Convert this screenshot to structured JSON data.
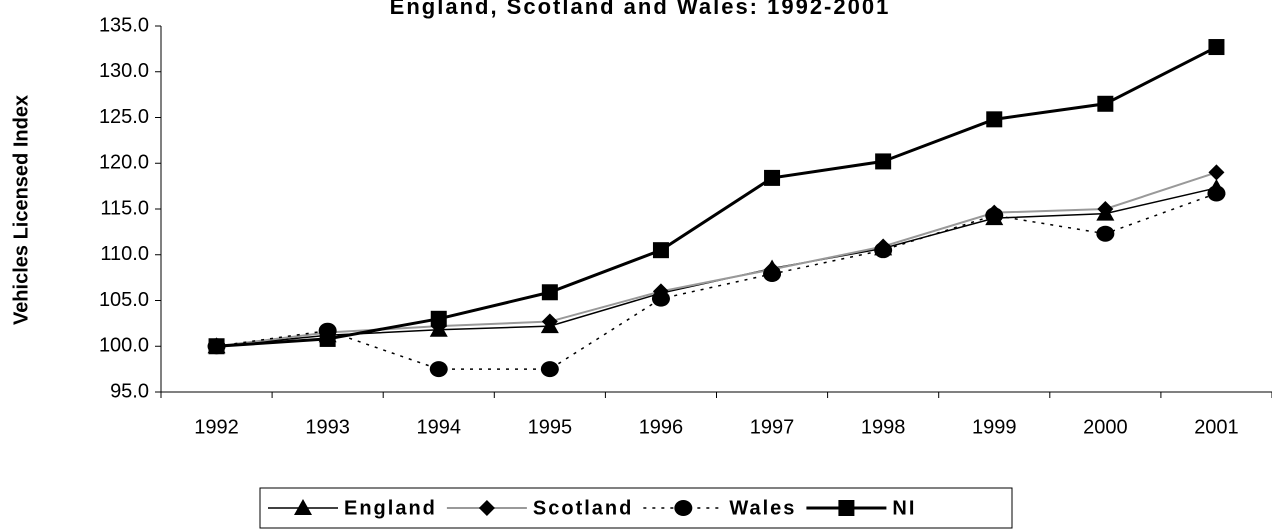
{
  "chart_data": {
    "type": "line",
    "title": "England, Scotland and Wales: 1992-2001",
    "y_label": "Vehicles Licensed Index",
    "categories": [
      "1992",
      "1993",
      "1994",
      "1995",
      "1996",
      "1997",
      "1998",
      "1999",
      "2000",
      "2001"
    ],
    "series": [
      {
        "name": "England",
        "color": "#000000",
        "values": [
          100,
          101.2,
          101.8,
          102.2,
          105.8,
          108.5,
          110.7,
          114.0,
          114.5,
          117.3
        ]
      },
      {
        "name": "Scotland",
        "color": "#999999",
        "values": [
          100,
          101.5,
          102.2,
          102.7,
          106.0,
          108.4,
          110.9,
          114.6,
          115.0,
          119.0
        ]
      },
      {
        "name": "Wales",
        "color": "#000000",
        "values": [
          100,
          101.7,
          97.5,
          97.5,
          105.2,
          107.9,
          110.5,
          114.3,
          112.3,
          116.7
        ]
      },
      {
        "name": "NI",
        "color": "#000000",
        "values": [
          100,
          100.8,
          103.0,
          105.9,
          110.5,
          118.4,
          120.2,
          124.8,
          126.5,
          132.7
        ]
      }
    ],
    "ylim": [
      95,
      135
    ],
    "yticks": [
      {
        "value": 95,
        "label": "95.0"
      },
      {
        "value": 100,
        "label": "100.0"
      },
      {
        "value": 105,
        "label": "105.0"
      },
      {
        "value": 110,
        "label": "110.0"
      },
      {
        "value": 115,
        "label": "115.0"
      },
      {
        "value": 120,
        "label": "120.0"
      },
      {
        "value": 125,
        "label": "125.0"
      },
      {
        "value": 130,
        "label": "130.0"
      },
      {
        "value": 135,
        "label": "135.0"
      }
    ],
    "legend": "bottom"
  }
}
